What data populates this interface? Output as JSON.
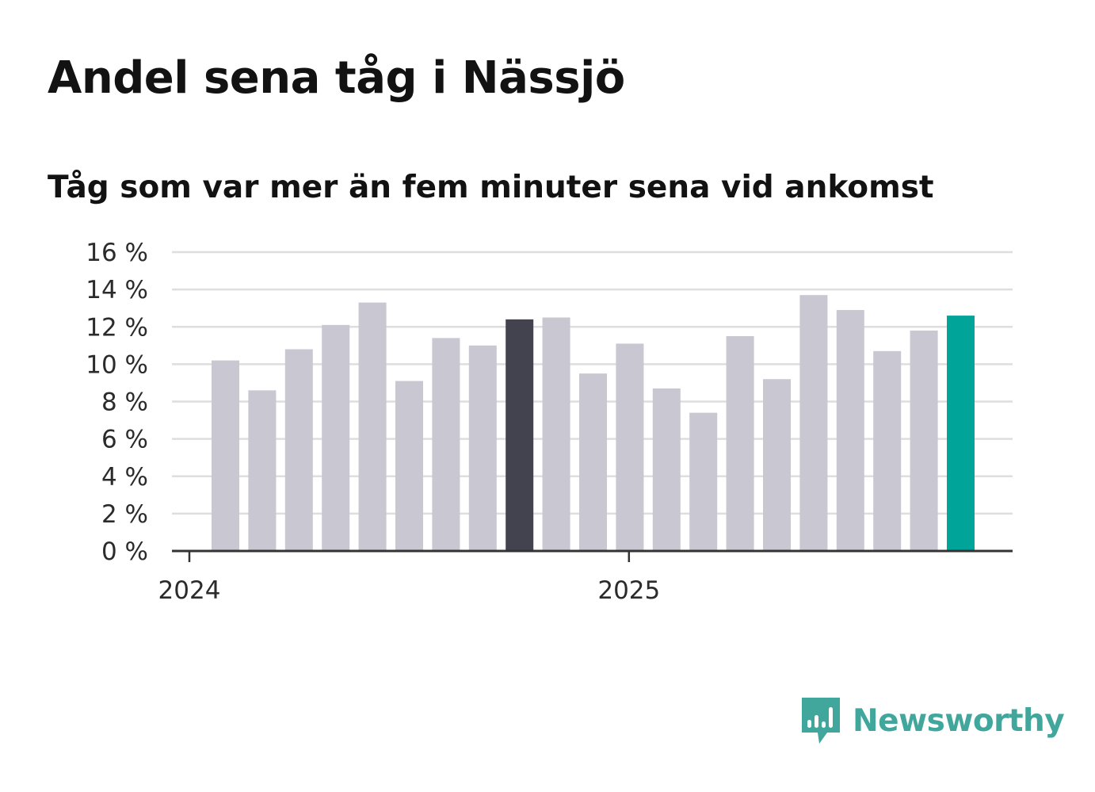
{
  "title": "Andel sena tåg i Nässjö",
  "subtitle": "Tåg som var mer än fem minuter sena vid ankomst",
  "brand": {
    "name": "Newsworthy",
    "color": "#41a69b",
    "icon": "bar-chart-speech-bubble-icon"
  },
  "colors": {
    "default": "#c8c7d2",
    "highlight": "#43424f",
    "latest": "#00a499",
    "grid": "#dedede",
    "axis": "#333333"
  },
  "chart_data": {
    "type": "bar",
    "title": "Andel sena tåg i Nässjö",
    "subtitle": "Tåg som var mer än fem minuter sena vid ankomst",
    "xlabel": "",
    "ylabel": "",
    "ylim": [
      0,
      16
    ],
    "yticks": [
      0,
      2,
      4,
      6,
      8,
      10,
      12,
      14,
      16
    ],
    "ytick_labels": [
      "0 %",
      "2 %",
      "4 %",
      "6 %",
      "8 %",
      "10 %",
      "12 %",
      "14 %",
      "16 %"
    ],
    "grid": true,
    "categories": [
      "2024-01",
      "2024-02",
      "2024-03",
      "2024-04",
      "2024-05",
      "2024-06",
      "2024-07",
      "2024-08",
      "2024-09",
      "2024-10",
      "2024-11",
      "2024-12",
      "2025-01",
      "2025-02",
      "2025-03",
      "2025-04",
      "2025-05",
      "2025-06",
      "2025-07",
      "2025-08",
      "2025-09"
    ],
    "values": [
      10.2,
      8.6,
      10.8,
      12.1,
      13.3,
      9.1,
      11.4,
      11.0,
      12.4,
      12.5,
      9.5,
      11.1,
      8.7,
      7.4,
      11.5,
      9.2,
      13.7,
      12.9,
      10.7,
      11.8,
      12.6
    ],
    "bar_styles": [
      "default",
      "default",
      "default",
      "default",
      "default",
      "default",
      "default",
      "default",
      "highlight",
      "default",
      "default",
      "default",
      "default",
      "default",
      "default",
      "default",
      "default",
      "default",
      "default",
      "default",
      "latest"
    ],
    "xticks": [
      {
        "label": "2024",
        "category_index": 0
      },
      {
        "label": "2025",
        "category_index": 12
      }
    ]
  }
}
